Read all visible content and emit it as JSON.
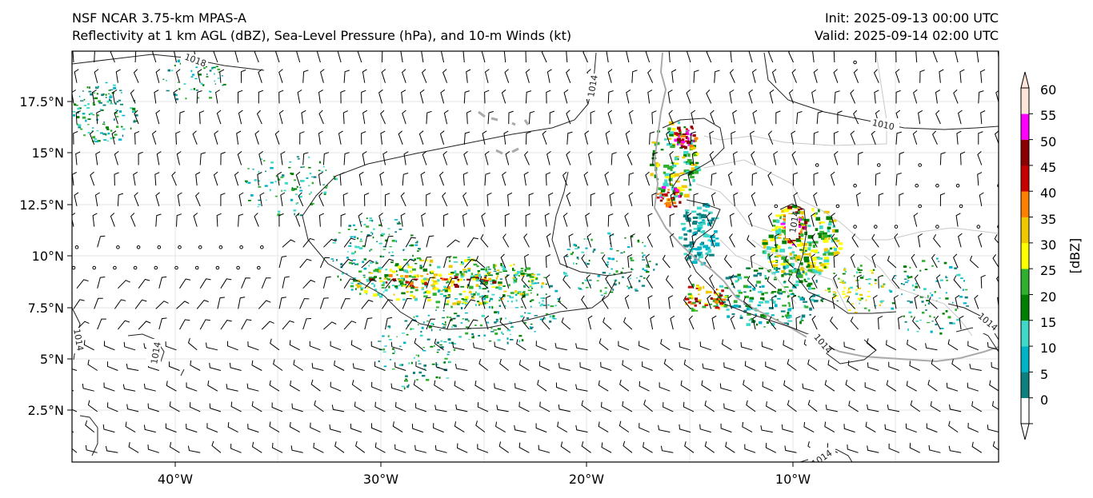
{
  "header": {
    "model": "NSF NCAR 3.75-km MPAS-A",
    "fields": "Reflectivity at 1 km AGL (dBZ), Sea-Level Pressure (hPa), and 10-m Winds (kt)",
    "init": "Init: 2025-09-13 00:00 UTC",
    "valid": "Valid: 2025-09-14 02:00 UTC"
  },
  "map": {
    "lat_ticks": [
      "17.5°N",
      "15°N",
      "12.5°N",
      "10°N",
      "7.5°N",
      "5°N",
      "2.5°N"
    ],
    "lon_ticks": [
      "40°W",
      "30°W",
      "20°W",
      "10°W"
    ],
    "isobar_labels": [
      "1018",
      "1014",
      "1010",
      "1014",
      "1014",
      "1014",
      "1014",
      "1014",
      "1014"
    ],
    "colors": {
      "isobar": "#222222",
      "coast": "#aaaaaa",
      "border": "#c8c8c8",
      "grid": "#e6e6e6",
      "barb": "#000000"
    }
  },
  "colorbar": {
    "label": "[dBZ]",
    "ticks": [
      "0",
      "5",
      "10",
      "15",
      "20",
      "25",
      "30",
      "35",
      "40",
      "45",
      "50",
      "55",
      "60"
    ],
    "colors": [
      "#ffffff",
      "#0f8080",
      "#00b4c8",
      "#40d8c8",
      "#008000",
      "#2fb02f",
      "#ffff00",
      "#f0c800",
      "#ff8000",
      "#c80000",
      "#8b0000",
      "#ff00ff",
      "#ffe4d8"
    ]
  }
}
